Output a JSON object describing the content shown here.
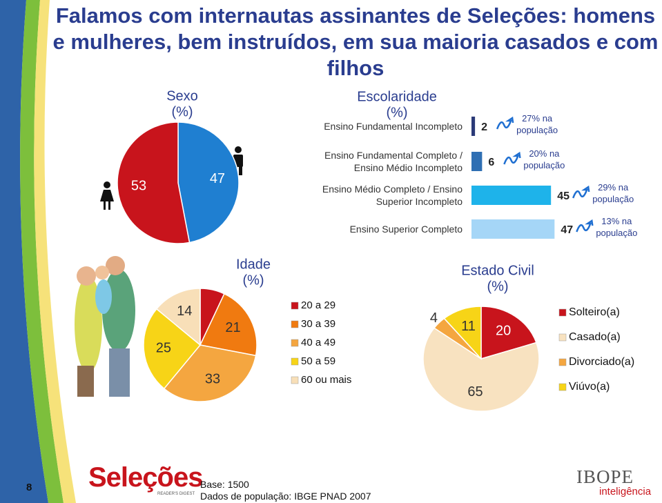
{
  "title": "Falamos com internautas assinantes de Seleções: homens e mulheres, bem instruídos, em sua maioria casados e com filhos",
  "chart_data": [
    {
      "type": "pie",
      "title": "Sexo",
      "subtitle": "(%)",
      "values": [
        47,
        53
      ],
      "colors": [
        "#1f7fd1",
        "#c8141c"
      ]
    },
    {
      "type": "bar",
      "orientation": "horizontal",
      "title": "Escolaridade",
      "subtitle": "(%)",
      "categories": [
        "Ensino Fundamental Incompleto",
        "Ensino Fundamental Completo / Ensino Médio Incompleto",
        "Ensino Médio Completo / Ensino Superior Incompleto",
        "Ensino Superior Completo"
      ],
      "values": [
        2,
        6,
        45,
        47
      ],
      "colors": [
        "#2b3a78",
        "#2f6fb3",
        "#1eb3ea",
        "#a5d6f7"
      ],
      "xlim": [
        0,
        50
      ],
      "population_notes": [
        "27% na população",
        "20% na população",
        "29% na população",
        "13% na população"
      ]
    },
    {
      "type": "pie",
      "title": "Idade",
      "subtitle": "(%)",
      "categories": [
        "20 a 29",
        "30 a 39",
        "40 a 49",
        "50 a 59",
        "60 ou mais"
      ],
      "values": [
        7,
        21,
        33,
        25,
        14
      ],
      "colors": [
        "#c8141c",
        "#f07a10",
        "#f4a640",
        "#f7d417",
        "#f8dfb8"
      ]
    },
    {
      "type": "pie",
      "title": "Estado Civil",
      "subtitle": "(%)",
      "categories": [
        "Solteiro(a)",
        "Casado(a)",
        "Divorciado(a)",
        "Viúvo(a)"
      ],
      "values": [
        20,
        65,
        4,
        11
      ],
      "colors": [
        "#c8141c",
        "#f8e2c0",
        "#f4a640",
        "#f7d417"
      ]
    }
  ],
  "page_number": 8,
  "footer": {
    "base": "Base: 1500",
    "source": "Dados de população: IBGE PNAD 2007"
  },
  "logos": {
    "selecoes": "Seleções",
    "selecoes_tagline": "READER'S DIGEST",
    "ibope": "IBOPE",
    "ibope_sub": "inteligência"
  }
}
